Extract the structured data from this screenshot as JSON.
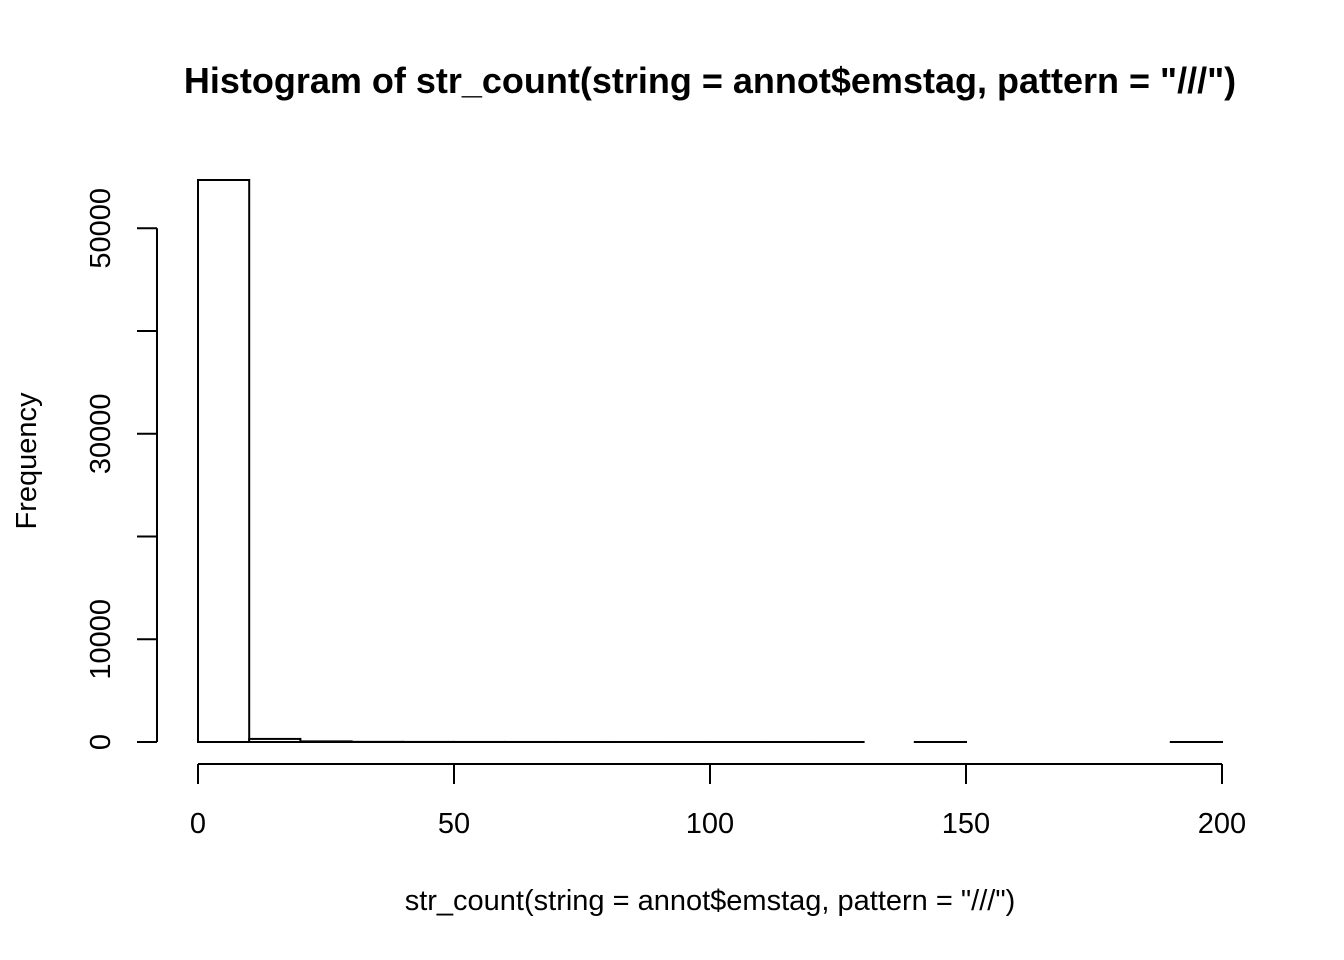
{
  "chart_data": {
    "type": "bar",
    "subtype": "histogram",
    "title": "Histogram of str_count(string = annot$emstag, pattern = \"///\")",
    "xlabel": "str_count(string = annot$emstag, pattern = \"///\")",
    "ylabel": "Frequency",
    "bins": [
      {
        "x0": 0,
        "x1": 10,
        "count": 54700
      },
      {
        "x0": 10,
        "x1": 20,
        "count": 300
      },
      {
        "x0": 20,
        "x1": 30,
        "count": 60
      },
      {
        "x0": 30,
        "x1": 40,
        "count": 15
      },
      {
        "x0": 40,
        "x1": 50,
        "count": 8
      },
      {
        "x0": 50,
        "x1": 60,
        "count": 5
      },
      {
        "x0": 60,
        "x1": 70,
        "count": 3
      },
      {
        "x0": 70,
        "x1": 80,
        "count": 2
      },
      {
        "x0": 80,
        "x1": 90,
        "count": 2
      },
      {
        "x0": 90,
        "x1": 100,
        "count": 1
      },
      {
        "x0": 100,
        "x1": 110,
        "count": 1
      },
      {
        "x0": 110,
        "x1": 120,
        "count": 1
      },
      {
        "x0": 120,
        "x1": 130,
        "count": 1
      },
      {
        "x0": 130,
        "x1": 140,
        "count": 0
      },
      {
        "x0": 140,
        "x1": 150,
        "count": 1
      },
      {
        "x0": 150,
        "x1": 160,
        "count": 0
      },
      {
        "x0": 160,
        "x1": 170,
        "count": 0
      },
      {
        "x0": 170,
        "x1": 180,
        "count": 0
      },
      {
        "x0": 180,
        "x1": 190,
        "count": 0
      },
      {
        "x0": 190,
        "x1": 200,
        "count": 1
      }
    ],
    "xlim": [
      0,
      200
    ],
    "ylim": [
      0,
      54700
    ],
    "x_ticks": [
      0,
      50,
      100,
      150,
      200
    ],
    "x_tick_labels": [
      "0",
      "50",
      "100",
      "150",
      "200"
    ],
    "y_ticks": [
      0,
      10000,
      20000,
      30000,
      40000,
      50000
    ],
    "y_tick_labels": [
      "0",
      "10000",
      "",
      "30000",
      "",
      "50000"
    ],
    "grid": false,
    "legend": "none"
  }
}
